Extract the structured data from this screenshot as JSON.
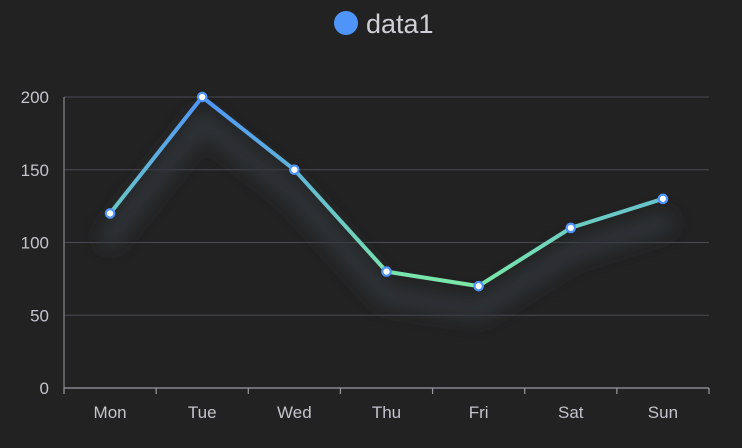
{
  "chart_data": {
    "type": "line",
    "categories": [
      "Mon",
      "Tue",
      "Wed",
      "Thu",
      "Fri",
      "Sat",
      "Sun"
    ],
    "series": [
      {
        "name": "data1",
        "values": [
          120,
          200,
          150,
          80,
          70,
          110,
          130
        ]
      }
    ],
    "ylim": [
      0,
      200
    ],
    "yticks": [
      0,
      50,
      100,
      150,
      200
    ],
    "grid": true,
    "legend": "top-center",
    "colors": {
      "background": "#222222",
      "legend_marker": "#4f94f8",
      "gradient_top": "#4f94f8",
      "gradient_bottom": "#7beaa6",
      "grid": "#4a4a52",
      "axis": "#9a9aa4",
      "point_fill": "#ffffff",
      "point_stroke": "#4f94f8"
    }
  }
}
